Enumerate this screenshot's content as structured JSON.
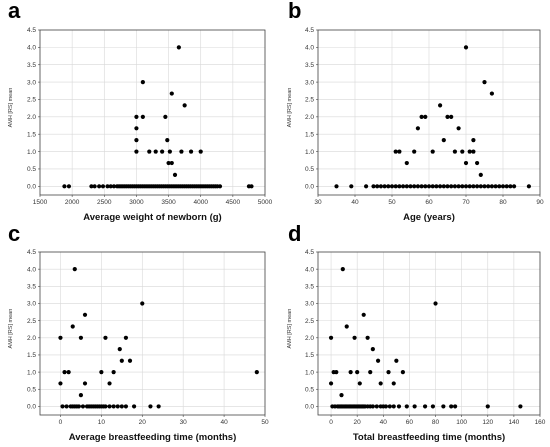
{
  "chart_data": [
    {
      "panel": "a",
      "type": "scatter",
      "xlabel": "Average weight of newborn (g)",
      "ylabel": "AMH [RS] mean",
      "xlim": [
        1500,
        5000
      ],
      "ylim": [
        -0.25,
        4.5
      ],
      "xticks": [
        1500,
        2000,
        2500,
        3000,
        3500,
        4000,
        4500,
        5000
      ],
      "yticks": [
        0.0,
        0.5,
        1.0,
        1.5,
        2.0,
        2.5,
        3.0,
        3.5,
        4.0,
        4.5
      ],
      "ytick_labels": [
        "0.0",
        "0.5",
        "1.0",
        "1.5",
        "2.0",
        "2.5",
        "3.0",
        "3.5",
        "4.0",
        "4.5"
      ],
      "grid": true,
      "points": [
        [
          1880,
          0
        ],
        [
          1950,
          0
        ],
        [
          2300,
          0
        ],
        [
          2350,
          0
        ],
        [
          2420,
          0
        ],
        [
          2480,
          0
        ],
        [
          2550,
          0
        ],
        [
          2600,
          0
        ],
        [
          2650,
          0
        ],
        [
          2700,
          0
        ],
        [
          2730,
          0
        ],
        [
          2760,
          0
        ],
        [
          2790,
          0
        ],
        [
          2820,
          0
        ],
        [
          2850,
          0
        ],
        [
          2880,
          0
        ],
        [
          2910,
          0
        ],
        [
          2940,
          0
        ],
        [
          2970,
          0
        ],
        [
          3000,
          0
        ],
        [
          3030,
          0
        ],
        [
          3060,
          0
        ],
        [
          3090,
          0
        ],
        [
          3120,
          0
        ],
        [
          3150,
          0
        ],
        [
          3180,
          0
        ],
        [
          3210,
          0
        ],
        [
          3240,
          0
        ],
        [
          3270,
          0
        ],
        [
          3300,
          0
        ],
        [
          3330,
          0
        ],
        [
          3360,
          0
        ],
        [
          3390,
          0
        ],
        [
          3420,
          0
        ],
        [
          3450,
          0
        ],
        [
          3480,
          0
        ],
        [
          3510,
          0
        ],
        [
          3540,
          0
        ],
        [
          3570,
          0
        ],
        [
          3600,
          0
        ],
        [
          3630,
          0
        ],
        [
          3660,
          0
        ],
        [
          3690,
          0
        ],
        [
          3720,
          0
        ],
        [
          3750,
          0
        ],
        [
          3780,
          0
        ],
        [
          3810,
          0
        ],
        [
          3840,
          0
        ],
        [
          3870,
          0
        ],
        [
          3900,
          0
        ],
        [
          3930,
          0
        ],
        [
          3960,
          0
        ],
        [
          3990,
          0
        ],
        [
          4020,
          0
        ],
        [
          4050,
          0
        ],
        [
          4080,
          0
        ],
        [
          4110,
          0
        ],
        [
          4140,
          0
        ],
        [
          4170,
          0
        ],
        [
          4200,
          0
        ],
        [
          4230,
          0
        ],
        [
          4260,
          0
        ],
        [
          4300,
          0
        ],
        [
          4750,
          0
        ],
        [
          4790,
          0
        ],
        [
          3000,
          2.0
        ],
        [
          3000,
          1.67
        ],
        [
          3000,
          1.33
        ],
        [
          3000,
          1.0
        ],
        [
          3100,
          2.0
        ],
        [
          3100,
          3.0
        ],
        [
          3200,
          1.0
        ],
        [
          3300,
          1.0
        ],
        [
          3400,
          1.0
        ],
        [
          3450,
          2.0
        ],
        [
          3480,
          1.33
        ],
        [
          3500,
          0.67
        ],
        [
          3520,
          1.0
        ],
        [
          3550,
          0.67
        ],
        [
          3550,
          2.67
        ],
        [
          3600,
          0.33
        ],
        [
          3660,
          4.0
        ],
        [
          3700,
          1.0
        ],
        [
          3750,
          2.33
        ],
        [
          3850,
          1.0
        ],
        [
          4000,
          1.0
        ]
      ]
    },
    {
      "panel": "b",
      "type": "scatter",
      "xlabel": "Age (years)",
      "ylabel": "AMH [RS] mean",
      "xlim": [
        30,
        90
      ],
      "ylim": [
        -0.25,
        4.5
      ],
      "xticks": [
        30,
        40,
        50,
        60,
        70,
        80,
        90
      ],
      "yticks": [
        0.0,
        0.5,
        1.0,
        1.5,
        2.0,
        2.5,
        3.0,
        3.5,
        4.0,
        4.5
      ],
      "ytick_labels": [
        "0.0",
        "0.5",
        "1.0",
        "1.5",
        "2.0",
        "2.5",
        "3.0",
        "3.5",
        "4.0",
        "4.5"
      ],
      "grid": true,
      "points": [
        [
          35,
          0
        ],
        [
          39,
          0
        ],
        [
          43,
          0
        ],
        [
          45,
          0
        ],
        [
          46,
          0
        ],
        [
          47,
          0
        ],
        [
          48,
          0
        ],
        [
          49,
          0
        ],
        [
          50,
          0
        ],
        [
          51,
          0
        ],
        [
          52,
          0
        ],
        [
          53,
          0
        ],
        [
          54,
          0
        ],
        [
          55,
          0
        ],
        [
          56,
          0
        ],
        [
          57,
          0
        ],
        [
          58,
          0
        ],
        [
          59,
          0
        ],
        [
          60,
          0
        ],
        [
          61,
          0
        ],
        [
          62,
          0
        ],
        [
          63,
          0
        ],
        [
          64,
          0
        ],
        [
          65,
          0
        ],
        [
          66,
          0
        ],
        [
          67,
          0
        ],
        [
          68,
          0
        ],
        [
          69,
          0
        ],
        [
          70,
          0
        ],
        [
          71,
          0
        ],
        [
          72,
          0
        ],
        [
          73,
          0
        ],
        [
          74,
          0
        ],
        [
          75,
          0
        ],
        [
          76,
          0
        ],
        [
          77,
          0
        ],
        [
          78,
          0
        ],
        [
          79,
          0
        ],
        [
          80,
          0
        ],
        [
          81,
          0
        ],
        [
          82,
          0
        ],
        [
          83,
          0
        ],
        [
          87,
          0
        ],
        [
          51,
          1.0
        ],
        [
          52,
          1.0
        ],
        [
          54,
          0.67
        ],
        [
          56,
          1.0
        ],
        [
          57,
          1.67
        ],
        [
          58,
          2.0
        ],
        [
          59,
          2.0
        ],
        [
          61,
          1.0
        ],
        [
          63,
          2.33
        ],
        [
          64,
          1.33
        ],
        [
          65,
          2.0
        ],
        [
          66,
          2.0
        ],
        [
          67,
          1.0
        ],
        [
          68,
          1.67
        ],
        [
          69,
          1.0
        ],
        [
          70,
          4.0
        ],
        [
          70,
          0.67
        ],
        [
          71,
          1.0
        ],
        [
          72,
          1.33
        ],
        [
          72,
          1.0
        ],
        [
          73,
          0.67
        ],
        [
          74,
          0.33
        ],
        [
          75,
          3.0
        ],
        [
          77,
          2.67
        ]
      ]
    },
    {
      "panel": "c",
      "type": "scatter",
      "xlabel": "Average breastfeeding time (months)",
      "ylabel": "AMH [RS] mean",
      "xlim": [
        -5,
        50
      ],
      "ylim": [
        -0.25,
        4.5
      ],
      "xticks": [
        0,
        10,
        20,
        30,
        40,
        50
      ],
      "yticks": [
        0.0,
        0.5,
        1.0,
        1.5,
        2.0,
        2.5,
        3.0,
        3.5,
        4.0,
        4.5
      ],
      "ytick_labels": [
        "0.0",
        "0.5",
        "1.0",
        "1.5",
        "2.0",
        "2.5",
        "3.0",
        "3.5",
        "4.0",
        "4.5"
      ],
      "grid": true,
      "points": [
        [
          0,
          0.67
        ],
        [
          0,
          2.0
        ],
        [
          0.5,
          0
        ],
        [
          1,
          1.0
        ],
        [
          1.5,
          0
        ],
        [
          2,
          1.0
        ],
        [
          2.5,
          0
        ],
        [
          3,
          0
        ],
        [
          3,
          2.33
        ],
        [
          3.5,
          0
        ],
        [
          3.5,
          4.0
        ],
        [
          4,
          0
        ],
        [
          4.5,
          0
        ],
        [
          5,
          0.33
        ],
        [
          5,
          2.0
        ],
        [
          5.5,
          0
        ],
        [
          6,
          0.67
        ],
        [
          6,
          2.67
        ],
        [
          6.5,
          0
        ],
        [
          7,
          0
        ],
        [
          7.5,
          0
        ],
        [
          8,
          0
        ],
        [
          8.5,
          0
        ],
        [
          9,
          0
        ],
        [
          9.5,
          0
        ],
        [
          10,
          0
        ],
        [
          10,
          1.0
        ],
        [
          10.5,
          0
        ],
        [
          11,
          0
        ],
        [
          11,
          2.0
        ],
        [
          12,
          0
        ],
        [
          12,
          0.67
        ],
        [
          13,
          0
        ],
        [
          13,
          1.0
        ],
        [
          14,
          0
        ],
        [
          14.5,
          1.67
        ],
        [
          15,
          0
        ],
        [
          15,
          1.33
        ],
        [
          16,
          0
        ],
        [
          16,
          2.0
        ],
        [
          17,
          1.33
        ],
        [
          18,
          0
        ],
        [
          20,
          3.0
        ],
        [
          22,
          0
        ],
        [
          24,
          0
        ],
        [
          48,
          1.0
        ]
      ]
    },
    {
      "panel": "d",
      "type": "scatter",
      "xlabel": "Total breastfeeding time (months)",
      "ylabel": "AMH [RS] mean",
      "xlim": [
        -10,
        160
      ],
      "ylim": [
        -0.25,
        4.5
      ],
      "xticks": [
        0,
        20,
        40,
        60,
        80,
        100,
        120,
        140,
        160
      ],
      "yticks": [
        0.0,
        0.5,
        1.0,
        1.5,
        2.0,
        2.5,
        3.0,
        3.5,
        4.0,
        4.5
      ],
      "ytick_labels": [
        "0.0",
        "0.5",
        "1.0",
        "1.5",
        "2.0",
        "2.5",
        "3.0",
        "3.5",
        "4.0",
        "4.5"
      ],
      "grid": true,
      "points": [
        [
          0,
          0.67
        ],
        [
          0,
          2.0
        ],
        [
          1,
          0
        ],
        [
          2,
          1.0
        ],
        [
          3,
          0
        ],
        [
          4,
          1.0
        ],
        [
          5,
          0
        ],
        [
          6,
          0
        ],
        [
          7,
          0
        ],
        [
          8,
          0
        ],
        [
          9,
          0
        ],
        [
          10,
          0
        ],
        [
          11,
          0
        ],
        [
          12,
          0
        ],
        [
          13,
          0
        ],
        [
          14,
          0
        ],
        [
          15,
          0
        ],
        [
          16,
          0
        ],
        [
          17,
          0
        ],
        [
          18,
          0
        ],
        [
          19,
          0
        ],
        [
          20,
          0
        ],
        [
          21,
          0
        ],
        [
          22,
          0
        ],
        [
          23,
          0
        ],
        [
          24,
          0
        ],
        [
          25,
          0
        ],
        [
          26,
          0
        ],
        [
          28,
          0
        ],
        [
          30,
          0
        ],
        [
          32,
          0
        ],
        [
          35,
          0
        ],
        [
          38,
          0
        ],
        [
          40,
          0
        ],
        [
          42,
          0
        ],
        [
          45,
          0
        ],
        [
          48,
          0
        ],
        [
          52,
          0
        ],
        [
          58,
          0
        ],
        [
          64,
          0
        ],
        [
          72,
          0
        ],
        [
          78,
          0
        ],
        [
          86,
          0
        ],
        [
          92,
          0
        ],
        [
          95,
          0
        ],
        [
          120,
          0
        ],
        [
          145,
          0
        ],
        [
          8,
          0.33
        ],
        [
          9,
          4.0
        ],
        [
          12,
          2.33
        ],
        [
          15,
          1.0
        ],
        [
          18,
          2.0
        ],
        [
          20,
          1.0
        ],
        [
          22,
          0.67
        ],
        [
          25,
          2.67
        ],
        [
          28,
          2.0
        ],
        [
          30,
          1.0
        ],
        [
          32,
          1.67
        ],
        [
          36,
          1.33
        ],
        [
          38,
          0.67
        ],
        [
          44,
          1.0
        ],
        [
          48,
          0.67
        ],
        [
          50,
          1.33
        ],
        [
          55,
          1.0
        ],
        [
          80,
          3.0
        ]
      ]
    }
  ]
}
